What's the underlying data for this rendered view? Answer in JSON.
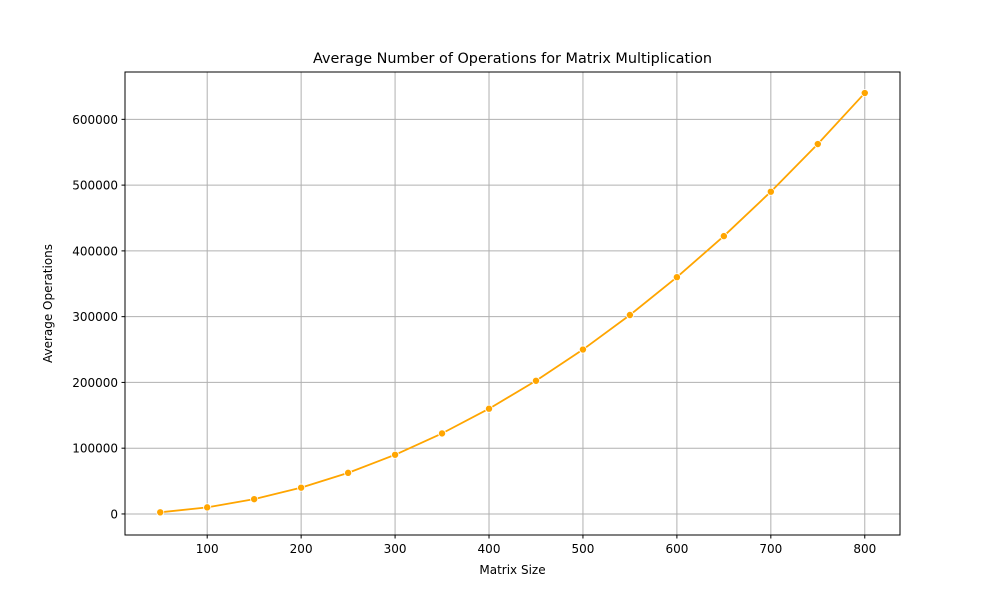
{
  "chart_data": {
    "type": "line",
    "title": "Average Number of Operations for Matrix Multiplication",
    "xlabel": "Matrix Size",
    "ylabel": "Average Operations",
    "xlim": [
      12.5,
      837.5
    ],
    "ylim": [
      -32000,
      672000
    ],
    "xticks": [
      100,
      200,
      300,
      400,
      500,
      600,
      700,
      800
    ],
    "yticks": [
      0,
      100000,
      200000,
      300000,
      400000,
      500000,
      600000
    ],
    "grid": true,
    "series": [
      {
        "color": "#ffa500",
        "marker": "circle",
        "x": [
          50,
          100,
          150,
          200,
          250,
          300,
          350,
          400,
          450,
          500,
          550,
          600,
          650,
          700,
          750,
          800
        ],
        "y": [
          2500,
          10000,
          22500,
          40000,
          62500,
          90000,
          122500,
          160000,
          202500,
          250000,
          302500,
          360000,
          422500,
          490000,
          562500,
          640000
        ]
      }
    ]
  }
}
